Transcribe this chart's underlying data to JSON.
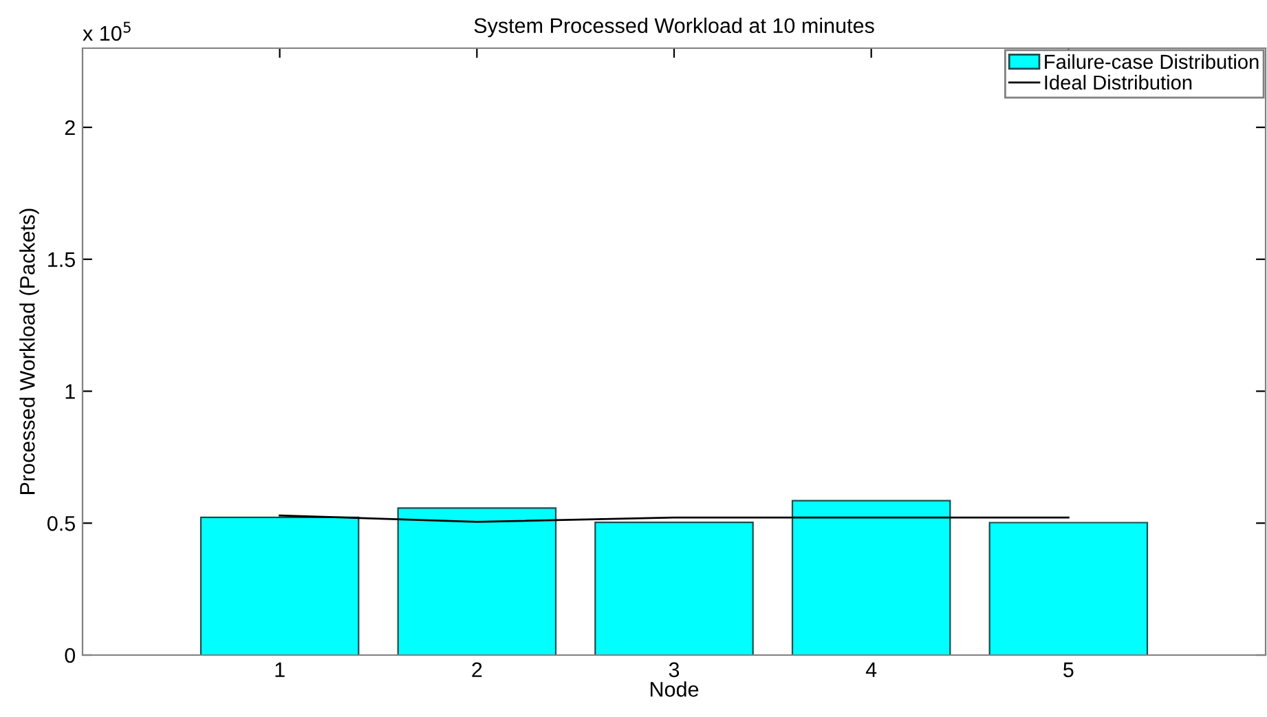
{
  "chart_data": {
    "type": "bar",
    "title": "System Processed Workload at 10 minutes",
    "xlabel": "Node",
    "ylabel": "Processed Workload (Packets)",
    "annotations": [
      "x 10$^{5}$"
    ],
    "categories": [
      "1",
      "2",
      "3",
      "4",
      "5"
    ],
    "series": [
      {
        "name": "Failure-case Distribution",
        "color": "#00ffff",
        "values": [
          0.522,
          0.557,
          0.503,
          0.585,
          0.502
        ]
      },
      {
        "name": "Ideal Distribution",
        "type": "line",
        "color": "#000000",
        "values": [
          0.529,
          0.505,
          0.521,
          0.521,
          0.521
        ]
      }
    ],
    "ylim": [
      0,
      2.3
    ],
    "yticks": [
      0,
      0.5,
      1,
      1.5,
      2
    ],
    "grid": false,
    "legend": "top right"
  }
}
